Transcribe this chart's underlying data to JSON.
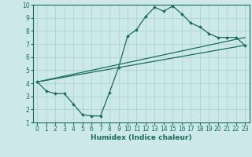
{
  "xlabel": "Humidex (Indice chaleur)",
  "bg_color": "#cce8ea",
  "grid_color": "#aed4d6",
  "line_color": "#1a6b5e",
  "xlim": [
    -0.5,
    23.5
  ],
  "ylim": [
    1,
    10
  ],
  "xticks": [
    0,
    1,
    2,
    3,
    4,
    5,
    6,
    7,
    8,
    9,
    10,
    11,
    12,
    13,
    14,
    15,
    16,
    17,
    18,
    19,
    20,
    21,
    22,
    23
  ],
  "yticks": [
    1,
    2,
    3,
    4,
    5,
    6,
    7,
    8,
    9,
    10
  ],
  "line1_x": [
    0,
    1,
    2,
    3,
    4,
    5,
    6,
    7,
    8,
    9,
    10,
    11,
    12,
    13,
    14,
    15,
    16,
    17,
    18,
    19,
    20,
    21,
    22,
    23
  ],
  "line1_y": [
    4.1,
    3.4,
    3.2,
    3.2,
    2.4,
    1.6,
    1.5,
    1.5,
    3.3,
    5.2,
    7.6,
    8.1,
    9.1,
    9.8,
    9.5,
    9.9,
    9.3,
    8.6,
    8.3,
    7.8,
    7.5,
    7.5,
    7.5,
    6.9
  ],
  "line2_x": [
    0,
    23
  ],
  "line2_y": [
    4.1,
    6.9
  ],
  "line3_x": [
    0,
    23
  ],
  "line3_y": [
    4.1,
    7.5
  ],
  "tick_fontsize": 5.5,
  "xlabel_fontsize": 6.5
}
